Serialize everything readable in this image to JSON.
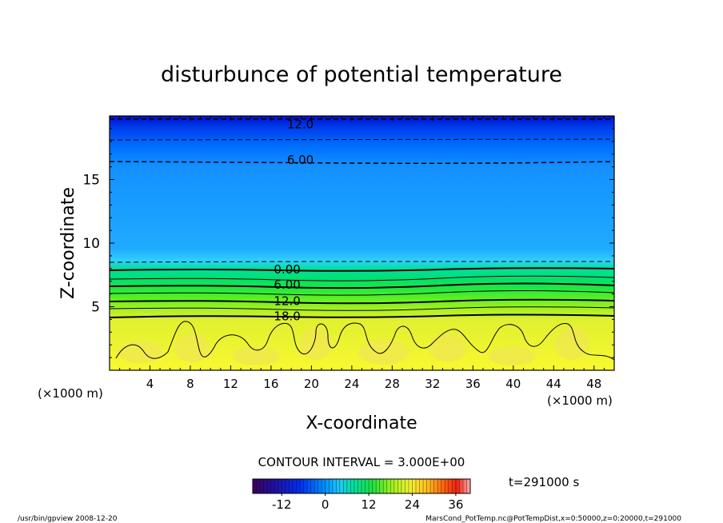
{
  "chart_data": {
    "type": "heatmap",
    "title": "disturbunce of potential temperature",
    "xlabel": "X-coordinate",
    "ylabel": "Z-coordinate",
    "x_unit": "(×1000 m)",
    "z_unit": "(×1000 m)",
    "xlim": [
      0,
      50
    ],
    "ylim": [
      0,
      20
    ],
    "x_ticks": [
      4,
      8,
      12,
      16,
      20,
      24,
      28,
      32,
      36,
      40,
      44,
      48
    ],
    "y_ticks": [
      5,
      10,
      15
    ],
    "contour_labels": [
      {
        "text": "12.0",
        "x": 18.9,
        "z": 19.4
      },
      {
        "text": "6.00",
        "x": 18.9,
        "z": 16.6
      },
      {
        "text": "0.00",
        "x": 17.6,
        "z": 8.0
      },
      {
        "text": "6.00",
        "x": 17.6,
        "z": 6.8
      },
      {
        "text": "12.0",
        "x": 17.6,
        "z": 5.5
      },
      {
        "text": "18.0",
        "x": 17.6,
        "z": 4.3
      }
    ],
    "contour_interval": "CONTOUR INTERVAL = 3.000E+00",
    "colorbar": {
      "range": [
        -20,
        40
      ],
      "ticks": [
        -12,
        0,
        12,
        24,
        36
      ]
    },
    "time": "t=291000 s"
  },
  "footer": {
    "left": "/usr/bin/gpview   2008-12-20",
    "right": "MarsCond_PotTemp.nc@PotTempDist,x=0:50000,z=0:20000,t=291000"
  }
}
